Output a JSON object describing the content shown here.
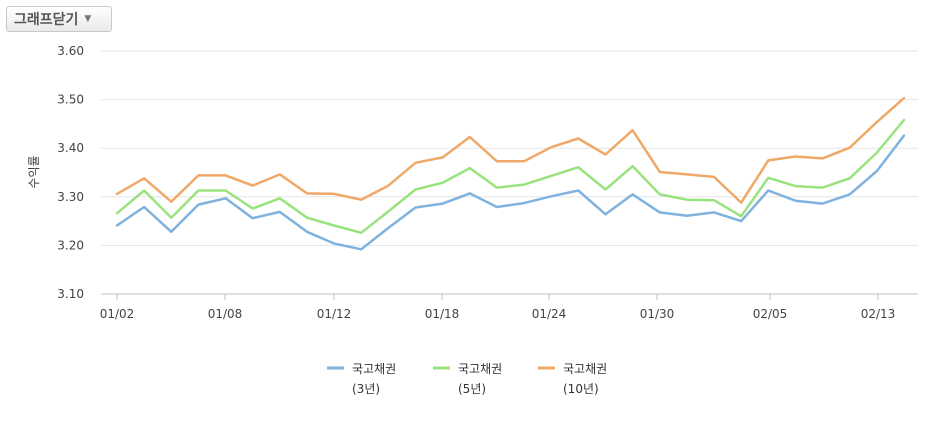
{
  "toolbar": {
    "toggle_label": "그래프닫기",
    "toggle_icon": "caret-down-icon"
  },
  "chart_data": {
    "type": "line",
    "ylabel": "수익률",
    "ylim": [
      3.1,
      3.6
    ],
    "yticks": [
      "3.10",
      "3.20",
      "3.30",
      "3.40",
      "3.50",
      "3.60"
    ],
    "xticks": [
      "01/02",
      "01/08",
      "01/12",
      "01/18",
      "01/24",
      "01/30",
      "02/05",
      "02/13"
    ],
    "grid": true,
    "legend": "bottom-center",
    "series": [
      {
        "name": "국고채권",
        "sub": "(3년)",
        "color": "#7fb2de",
        "values": [
          3.241,
          3.279,
          3.228,
          3.284,
          3.297,
          3.256,
          3.269,
          3.228,
          3.204,
          3.192,
          3.236,
          3.278,
          3.286,
          3.307,
          3.279,
          3.287,
          3.301,
          3.313,
          3.264,
          3.305,
          3.268,
          3.261,
          3.268,
          3.25,
          3.313,
          3.292,
          3.286,
          3.305,
          3.353,
          3.426
        ]
      },
      {
        "name": "국고채권",
        "sub": "(5년)",
        "color": "#99e37f",
        "values": [
          3.266,
          3.313,
          3.257,
          3.313,
          3.313,
          3.276,
          3.297,
          3.257,
          3.241,
          3.226,
          3.27,
          3.315,
          3.329,
          3.359,
          3.319,
          3.325,
          3.343,
          3.361,
          3.315,
          3.363,
          3.305,
          3.294,
          3.293,
          3.26,
          3.339,
          3.322,
          3.319,
          3.338,
          3.391,
          3.458
        ]
      },
      {
        "name": "국고채권",
        "sub": "(10년)",
        "color": "#f0a868",
        "values": [
          3.306,
          3.338,
          3.29,
          3.344,
          3.344,
          3.323,
          3.346,
          3.307,
          3.306,
          3.294,
          3.323,
          3.37,
          3.381,
          3.423,
          3.373,
          3.373,
          3.402,
          3.42,
          3.387,
          3.437,
          3.351,
          3.346,
          3.341,
          3.288,
          3.375,
          3.383,
          3.379,
          3.401,
          3.454,
          3.503
        ]
      }
    ]
  }
}
